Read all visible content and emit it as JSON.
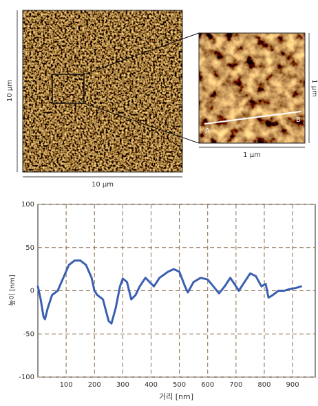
{
  "afm_images": {
    "overview": {
      "width_label": "10 μm",
      "height_label": "10 μm"
    },
    "zoom": {
      "width_label": "1 μm",
      "height_label": "1 μm",
      "point_a": "A",
      "point_b": "B"
    }
  },
  "chart_data": {
    "type": "line",
    "xlabel": "거리 [nm]",
    "ylabel": "높이 [nm]",
    "color": "#3a5fb0",
    "x": [
      0,
      10,
      20,
      25,
      35,
      50,
      70,
      90,
      110,
      130,
      150,
      170,
      190,
      200,
      210,
      230,
      250,
      260,
      275,
      290,
      300,
      315,
      330,
      345,
      360,
      380,
      395,
      410,
      430,
      460,
      480,
      500,
      520,
      530,
      550,
      575,
      600,
      620,
      640,
      660,
      680,
      700,
      710,
      730,
      750,
      770,
      790,
      805,
      815,
      830,
      850,
      870,
      890,
      910,
      930
    ],
    "values": [
      5,
      -10,
      -30,
      -33,
      -20,
      -5,
      0,
      15,
      30,
      35,
      35,
      30,
      15,
      0,
      -5,
      -10,
      -35,
      -38,
      -20,
      5,
      14,
      10,
      -10,
      -5,
      5,
      15,
      10,
      5,
      15,
      22,
      25,
      22,
      5,
      -2,
      10,
      15,
      13,
      5,
      -3,
      5,
      15,
      5,
      0,
      10,
      20,
      17,
      5,
      8,
      -8,
      -5,
      0,
      0,
      2,
      3,
      5
    ],
    "xlim": [
      0,
      980
    ],
    "ylim": [
      -100,
      100
    ],
    "xticks": [
      100,
      200,
      300,
      400,
      500,
      600,
      700,
      800,
      900
    ],
    "yticks": [
      -100,
      -50,
      0,
      50,
      100
    ],
    "grid": true
  }
}
